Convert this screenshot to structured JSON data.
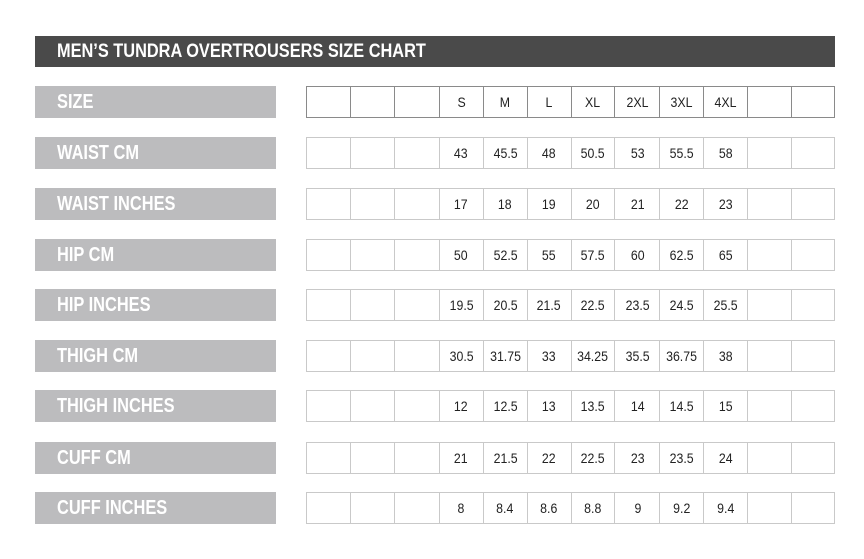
{
  "title": "MEN’S TUNDRA OVERTROUSERS SIZE CHART",
  "rows": [
    {
      "label": "SIZE",
      "values": [
        "",
        "",
        "",
        "S",
        "M",
        "L",
        "XL",
        "2XL",
        "3XL",
        "4XL",
        "",
        ""
      ]
    },
    {
      "label": "WAIST CM",
      "values": [
        "",
        "",
        "",
        "43",
        "45.5",
        "48",
        "50.5",
        "53",
        "55.5",
        "58",
        "",
        ""
      ]
    },
    {
      "label": "WAIST INCHES",
      "values": [
        "",
        "",
        "",
        "17",
        "18",
        "19",
        "20",
        "21",
        "22",
        "23",
        "",
        ""
      ]
    },
    {
      "label": "HIP CM",
      "values": [
        "",
        "",
        "",
        "50",
        "52.5",
        "55",
        "57.5",
        "60",
        "62.5",
        "65",
        "",
        ""
      ]
    },
    {
      "label": "HIP INCHES",
      "values": [
        "",
        "",
        "",
        "19.5",
        "20.5",
        "21.5",
        "22.5",
        "23.5",
        "24.5",
        "25.5",
        "",
        ""
      ]
    },
    {
      "label": "THIGH CM",
      "values": [
        "",
        "",
        "",
        "30.5",
        "31.75",
        "33",
        "34.25",
        "35.5",
        "36.75",
        "38",
        "",
        ""
      ]
    },
    {
      "label": "THIGH INCHES",
      "values": [
        "",
        "",
        "",
        "12",
        "12.5",
        "13",
        "13.5",
        "14",
        "14.5",
        "15",
        "",
        ""
      ]
    },
    {
      "label": "CUFF CM",
      "values": [
        "",
        "",
        "",
        "21",
        "21.5",
        "22",
        "22.5",
        "23",
        "23.5",
        "24",
        "",
        ""
      ]
    },
    {
      "label": "CUFF INCHES",
      "values": [
        "",
        "",
        "",
        "8",
        "8.4",
        "8.6",
        "8.8",
        "9",
        "9.2",
        "9.4",
        "",
        ""
      ]
    }
  ]
}
